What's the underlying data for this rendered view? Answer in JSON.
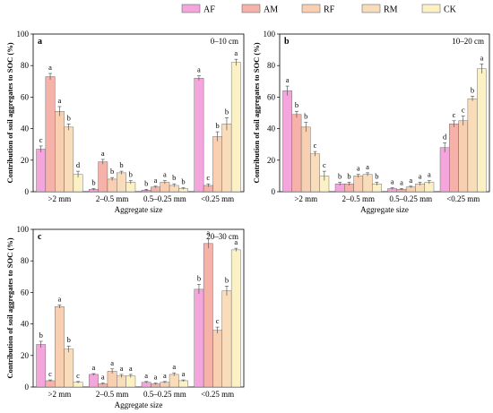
{
  "colors": {
    "AF": "#f4a6dc",
    "AM": "#f6b2a9",
    "RF": "#f8cfb0",
    "RM": "#f9ddba",
    "CK": "#fbf1c4"
  },
  "legend": [
    "AF",
    "AM",
    "RF",
    "RM",
    "CK"
  ],
  "chart_data": [
    {
      "type": "bar",
      "panel": "a",
      "depth": "0–10 cm",
      "categories": [
        ">2 mm",
        "2–0.5 mm",
        "0.5–0.25 mm",
        "<0.25 mm"
      ],
      "ylabel": "Contribution of soil aggregates to SOC (%)",
      "xlabel": "Aggregate size",
      "ylim": [
        0,
        100
      ],
      "yticks": [
        0,
        20,
        40,
        60,
        80,
        100
      ],
      "series": [
        {
          "name": "AF",
          "values": [
            27,
            1.5,
            1,
            72
          ],
          "errors": [
            2,
            0.5,
            0.5,
            1.5
          ],
          "letters": [
            "c",
            "b",
            "b",
            "a"
          ]
        },
        {
          "name": "AM",
          "values": [
            73,
            19,
            3,
            4
          ],
          "errors": [
            2,
            1.5,
            0.5,
            1
          ],
          "letters": [
            "a",
            "a",
            "a",
            "c"
          ]
        },
        {
          "name": "RF",
          "values": [
            51,
            8,
            6,
            35
          ],
          "errors": [
            3,
            1,
            1,
            3
          ],
          "letters": [
            "a",
            "b",
            "a",
            "b"
          ]
        },
        {
          "name": "RM",
          "values": [
            41,
            12,
            4,
            43
          ],
          "errors": [
            2,
            1,
            1,
            4
          ],
          "letters": [
            "b",
            "b",
            "b",
            "b"
          ]
        },
        {
          "name": "CK",
          "values": [
            11,
            6,
            2,
            82
          ],
          "errors": [
            2,
            1,
            0.5,
            2
          ],
          "letters": [
            "d",
            "b",
            "b",
            "a"
          ]
        }
      ]
    },
    {
      "type": "bar",
      "panel": "b",
      "depth": "10–20 cm",
      "categories": [
        ">2 mm",
        "2–0.5 mm",
        "0.5–0.25 mm",
        "<0.25 mm"
      ],
      "ylabel": "Contribution of soil aggregates to SOC (%)",
      "xlabel": "Aggregate size",
      "ylim": [
        0,
        100
      ],
      "yticks": [
        0,
        20,
        40,
        60,
        80,
        100
      ],
      "series": [
        {
          "name": "AF",
          "values": [
            64,
            5,
            2,
            28
          ],
          "errors": [
            3,
            1,
            0.5,
            3
          ],
          "letters": [
            "a",
            "b",
            "a",
            "d"
          ]
        },
        {
          "name": "AM",
          "values": [
            49,
            5,
            1.5,
            43
          ],
          "errors": [
            2,
            1,
            0.5,
            2
          ],
          "letters": [
            "b",
            "b",
            "a",
            "c"
          ]
        },
        {
          "name": "RF",
          "values": [
            41,
            10,
            3,
            45
          ],
          "errors": [
            3,
            1,
            0.5,
            3
          ],
          "letters": [
            "b",
            "a",
            "a",
            "c"
          ]
        },
        {
          "name": "RM",
          "values": [
            24,
            11,
            5,
            59
          ],
          "errors": [
            1.5,
            1,
            1,
            1.5
          ],
          "letters": [
            "c",
            "a",
            "a",
            "b"
          ]
        },
        {
          "name": "CK",
          "values": [
            10,
            5,
            6,
            78
          ],
          "errors": [
            3,
            1,
            1,
            3
          ],
          "letters": [
            "c",
            "b",
            "a",
            "a"
          ]
        }
      ]
    },
    {
      "type": "bar",
      "panel": "c",
      "depth": "20–30 cm",
      "categories": [
        ">2 mm",
        "2–0.5 mm",
        "0.5–0.25 mm",
        "<0.25 mm"
      ],
      "ylabel": "Contribution of soil aggregates to SOC (%)",
      "xlabel": "Aggregate size",
      "ylim": [
        0,
        100
      ],
      "yticks": [
        0,
        20,
        40,
        60,
        80,
        100
      ],
      "series": [
        {
          "name": "AF",
          "values": [
            27,
            8,
            3,
            62
          ],
          "errors": [
            2,
            0.5,
            0.5,
            3
          ],
          "letters": [
            "b",
            "a",
            "a",
            "b"
          ]
        },
        {
          "name": "AM",
          "values": [
            4,
            2,
            2,
            91
          ],
          "errors": [
            0.5,
            0.5,
            0.5,
            3
          ],
          "letters": [
            "c",
            "a",
            "a",
            "a"
          ]
        },
        {
          "name": "RF",
          "values": [
            51,
            10,
            3,
            36
          ],
          "errors": [
            1,
            1.5,
            0.5,
            2
          ],
          "letters": [
            "a",
            "a",
            "a",
            "c"
          ]
        },
        {
          "name": "RM",
          "values": [
            24,
            7,
            8,
            61
          ],
          "errors": [
            2,
            1,
            1,
            3
          ],
          "letters": [
            "b",
            "a",
            "a",
            "b"
          ]
        },
        {
          "name": "CK",
          "values": [
            3,
            7,
            4,
            87
          ],
          "errors": [
            0.5,
            1,
            0.5,
            1
          ],
          "letters": [
            "c",
            "a",
            "a",
            "a"
          ]
        }
      ]
    }
  ]
}
